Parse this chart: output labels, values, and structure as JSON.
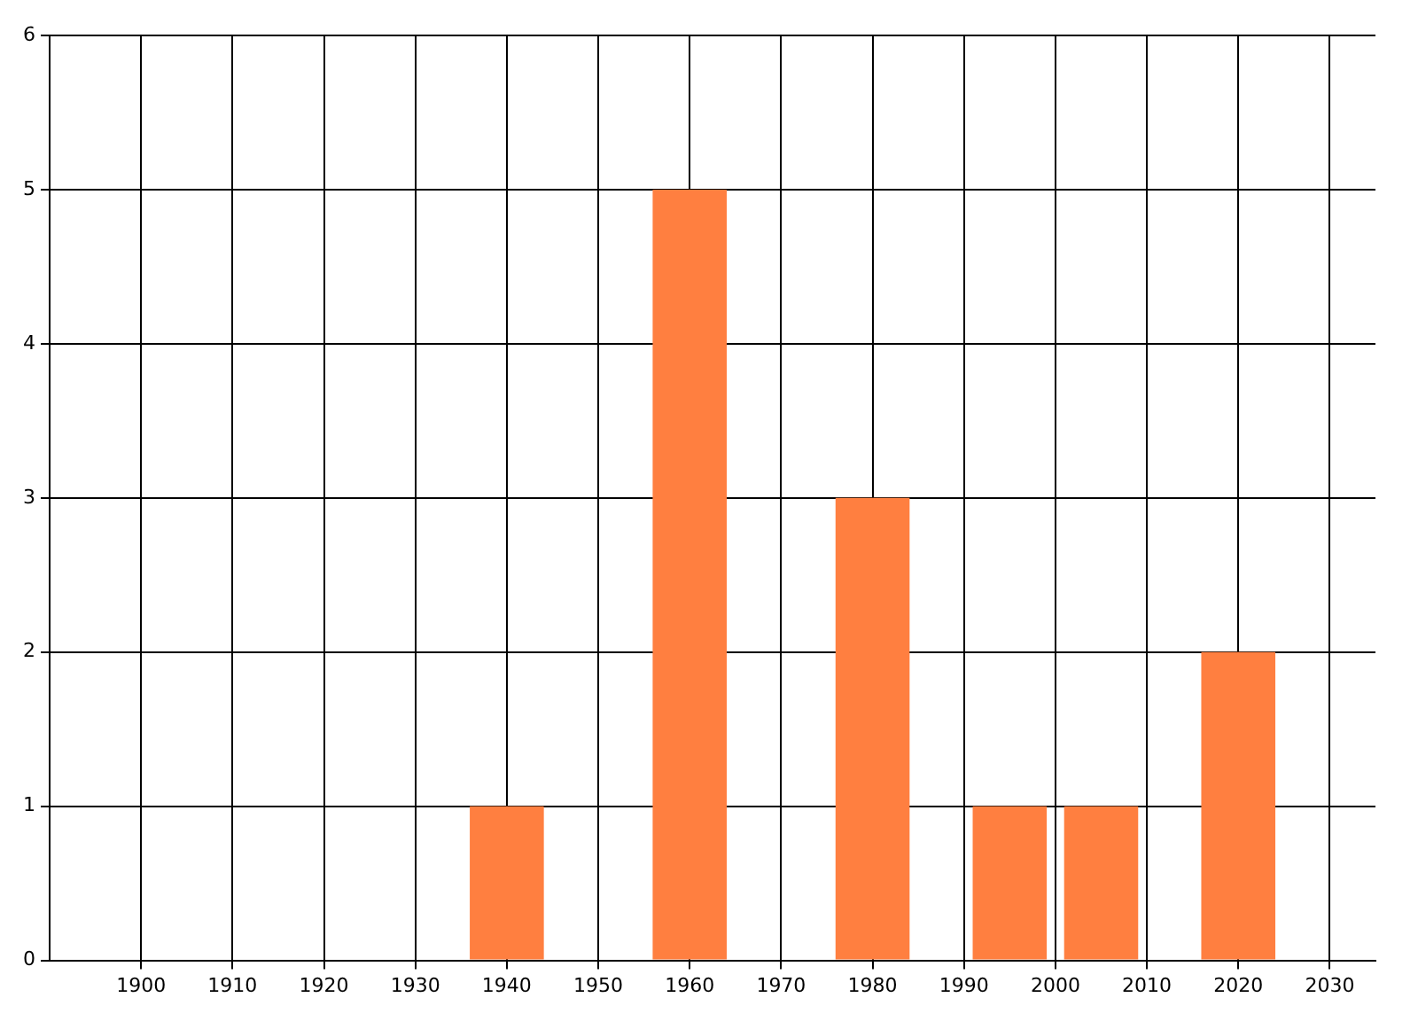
{
  "chart_data": {
    "type": "bar",
    "x": [
      1940,
      1960,
      1980,
      1995,
      2005,
      2020
    ],
    "values": [
      1,
      5,
      3,
      1,
      1,
      2
    ],
    "color": "#ff7f40",
    "xlim": [
      1890,
      2035
    ],
    "xticks": [
      1900,
      1910,
      1920,
      1930,
      1940,
      1950,
      1960,
      1970,
      1980,
      1990,
      2000,
      2010,
      2020,
      2030
    ],
    "ylim": [
      0,
      6
    ],
    "yticks": [
      0,
      1,
      2,
      3,
      4,
      5,
      6
    ],
    "grid": true,
    "legend": false
  }
}
